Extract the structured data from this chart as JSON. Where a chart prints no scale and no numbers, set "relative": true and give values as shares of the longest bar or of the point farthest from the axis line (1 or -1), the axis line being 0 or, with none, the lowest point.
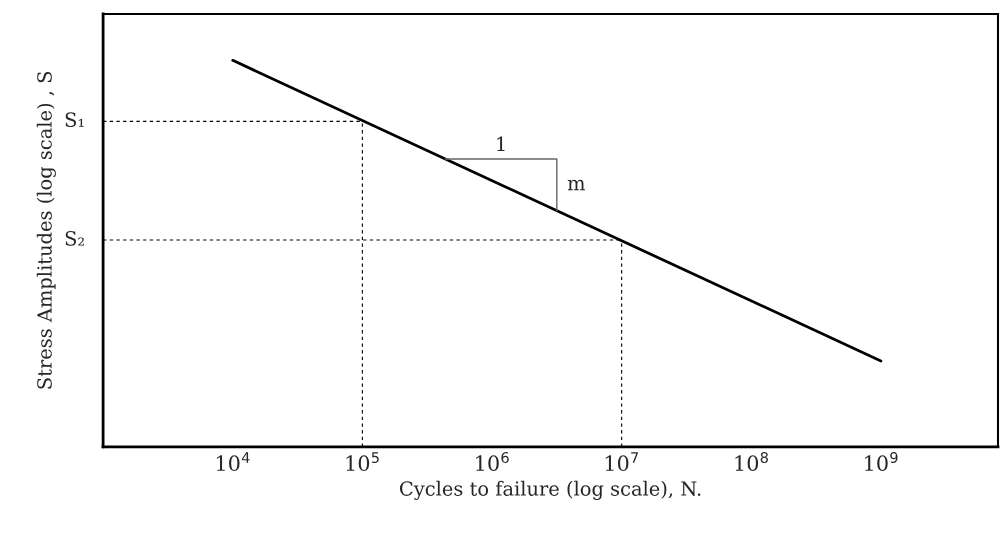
{
  "chart_data": {
    "type": "line",
    "xlabel": "Cycles to failure (log scale), N.",
    "ylabel": "Stress Amplitudes (log scale) , S",
    "x": [
      10000,
      1000000000
    ],
    "relative": true,
    "log": "x",
    "series": [
      {
        "color": "#000000",
        "values": [
          1,
          0.222
        ]
      }
    ],
    "xlim": [
      1000,
      8000000000
    ],
    "xticks": [
      {
        "value": 10000,
        "label": "10$^{4}$"
      },
      {
        "value": 100000,
        "label": "10$^{5}$"
      },
      {
        "value": 1000000,
        "label": "10$^{6}$"
      },
      {
        "value": 10000000,
        "label": "10$^{7}$"
      },
      {
        "value": 100000000,
        "label": "10$^{8}$"
      },
      {
        "value": 1000000000,
        "label": "10$^{9}$"
      }
    ],
    "ref_lines": [
      {
        "axis": "y",
        "value": 0.842,
        "label": "S₁",
        "color": "#000000",
        "line_style": "dashed"
      },
      {
        "axis": "y",
        "value": 0.535,
        "label": "S₂",
        "color": "#000000",
        "line_style": "dashed"
      },
      {
        "axis": "x",
        "value": 100000,
        "color": "#000000",
        "line_style": "dashed"
      },
      {
        "axis": "x",
        "value": 10000000,
        "color": "#000000",
        "line_style": "dashed"
      }
    ],
    "annotations": [
      "1",
      "m"
    ],
    "grid": false,
    "legend": false,
    "marker": "none",
    "line_style": "solid"
  }
}
